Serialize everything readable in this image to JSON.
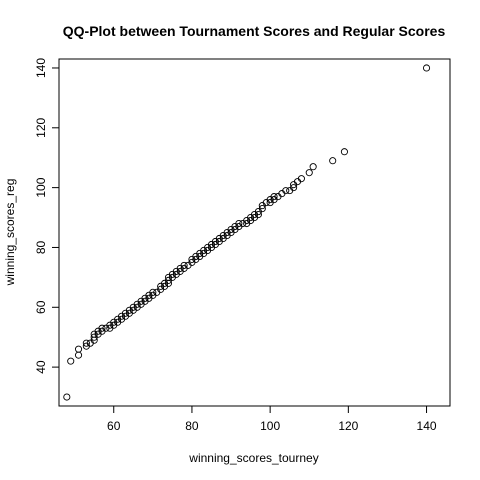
{
  "chart_data": {
    "type": "scatter",
    "title": "QQ-Plot between Tournament Scores and Regular Scores",
    "xlabel": "winning_scores_tourney",
    "ylabel": "winning_scores_reg",
    "xlim": [
      46,
      146
    ],
    "ylim": [
      27,
      143
    ],
    "xticks": [
      60,
      80,
      100,
      120,
      140
    ],
    "yticks": [
      40,
      60,
      80,
      100,
      120,
      140
    ],
    "grid": false,
    "legend": "none",
    "marker": "open-circle",
    "points": [
      [
        48,
        30
      ],
      [
        49,
        42
      ],
      [
        51,
        44
      ],
      [
        51,
        46
      ],
      [
        53,
        47
      ],
      [
        53,
        48
      ],
      [
        54,
        48
      ],
      [
        55,
        49
      ],
      [
        55,
        50
      ],
      [
        55,
        51
      ],
      [
        56,
        51
      ],
      [
        56,
        52
      ],
      [
        57,
        52
      ],
      [
        57,
        53
      ],
      [
        58,
        53
      ],
      [
        59,
        53
      ],
      [
        59,
        54
      ],
      [
        60,
        54
      ],
      [
        60,
        55
      ],
      [
        61,
        55
      ],
      [
        61,
        56
      ],
      [
        62,
        56
      ],
      [
        62,
        57
      ],
      [
        63,
        57
      ],
      [
        63,
        58
      ],
      [
        64,
        58
      ],
      [
        64,
        59
      ],
      [
        65,
        59
      ],
      [
        65,
        60
      ],
      [
        66,
        60
      ],
      [
        66,
        61
      ],
      [
        67,
        61
      ],
      [
        67,
        62
      ],
      [
        68,
        62
      ],
      [
        68,
        63
      ],
      [
        69,
        63
      ],
      [
        69,
        64
      ],
      [
        70,
        64
      ],
      [
        70,
        65
      ],
      [
        71,
        65
      ],
      [
        72,
        66
      ],
      [
        72,
        67
      ],
      [
        73,
        67
      ],
      [
        73,
        68
      ],
      [
        74,
        68
      ],
      [
        74,
        69
      ],
      [
        74,
        70
      ],
      [
        75,
        70
      ],
      [
        75,
        71
      ],
      [
        76,
        71
      ],
      [
        76,
        72
      ],
      [
        77,
        72
      ],
      [
        77,
        73
      ],
      [
        78,
        73
      ],
      [
        78,
        74
      ],
      [
        79,
        74
      ],
      [
        80,
        75
      ],
      [
        80,
        76
      ],
      [
        81,
        76
      ],
      [
        81,
        77
      ],
      [
        82,
        77
      ],
      [
        82,
        78
      ],
      [
        83,
        78
      ],
      [
        83,
        79
      ],
      [
        84,
        79
      ],
      [
        84,
        80
      ],
      [
        85,
        80
      ],
      [
        85,
        81
      ],
      [
        86,
        81
      ],
      [
        86,
        82
      ],
      [
        87,
        82
      ],
      [
        87,
        83
      ],
      [
        88,
        83
      ],
      [
        88,
        84
      ],
      [
        89,
        84
      ],
      [
        89,
        85
      ],
      [
        90,
        85
      ],
      [
        90,
        86
      ],
      [
        91,
        86
      ],
      [
        91,
        87
      ],
      [
        92,
        87
      ],
      [
        92,
        88
      ],
      [
        93,
        88
      ],
      [
        94,
        88
      ],
      [
        94,
        89
      ],
      [
        95,
        89
      ],
      [
        95,
        90
      ],
      [
        96,
        90
      ],
      [
        96,
        91
      ],
      [
        97,
        91
      ],
      [
        97,
        92
      ],
      [
        98,
        93
      ],
      [
        98,
        94
      ],
      [
        99,
        95
      ],
      [
        100,
        95
      ],
      [
        100,
        96
      ],
      [
        101,
        96
      ],
      [
        101,
        97
      ],
      [
        102,
        97
      ],
      [
        103,
        98
      ],
      [
        104,
        99
      ],
      [
        105,
        99
      ],
      [
        106,
        100
      ],
      [
        106,
        101
      ],
      [
        107,
        102
      ],
      [
        108,
        103
      ],
      [
        110,
        105
      ],
      [
        111,
        107
      ],
      [
        116,
        109
      ],
      [
        119,
        112
      ],
      [
        140,
        140
      ]
    ]
  }
}
